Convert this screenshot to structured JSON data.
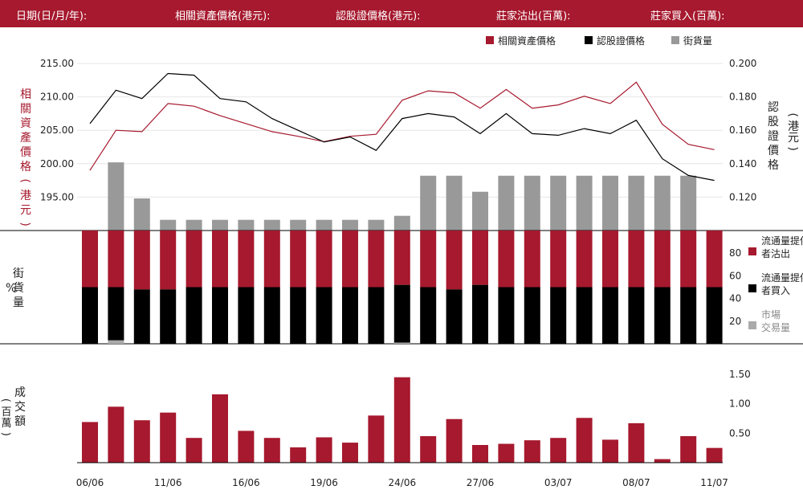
{
  "header": {
    "date_label": "日期(日/月/年):",
    "underlying_label": "相關資產價格(港元):",
    "warrant_label": "認股證價格(港元):",
    "broker_sell_label": "莊家沽出(百萬):",
    "broker_buy_label": "莊家買入(百萬):"
  },
  "colors": {
    "brand_red": "#a6192e",
    "black": "#000000",
    "gray": "#999999",
    "light_gray": "#aaaaaa"
  },
  "chart_data": [
    {
      "panel": "price",
      "type": "line",
      "legend": [
        "相關資產價格",
        "認股證價格",
        "街貨量"
      ],
      "legend_placement": "top-right",
      "y_left_label": "相關資產價格（港元）",
      "y_right_label": "認股證價格（港元）",
      "y_left_ticks": [
        "195.00",
        "200.00",
        "205.00",
        "210.00",
        "215.00"
      ],
      "y_right_ticks": [
        "0.120",
        "0.140",
        "0.160",
        "0.180",
        "0.200"
      ],
      "y_left_range": [
        190,
        215
      ],
      "y_right_range": [
        0.1,
        0.2
      ],
      "grid": true,
      "series": [
        {
          "name": "相關資產價格",
          "axis": "left",
          "color": "#a6192e",
          "values": [
            199.0,
            205.0,
            204.8,
            209.0,
            208.6,
            207.2,
            206.0,
            204.8,
            204.1,
            203.3,
            204.1,
            204.4,
            209.5,
            210.9,
            210.6,
            208.3,
            211.1,
            208.3,
            208.8,
            210.1,
            209.0,
            212.2,
            205.9,
            202.9,
            202.1
          ]
        },
        {
          "name": "認股證價格",
          "axis": "right",
          "color": "#000000",
          "values": [
            0.164,
            0.184,
            0.179,
            0.194,
            0.193,
            0.179,
            0.177,
            0.167,
            0.16,
            0.153,
            0.156,
            0.148,
            0.167,
            0.17,
            0.168,
            0.158,
            0.17,
            0.158,
            0.157,
            0.161,
            0.158,
            0.166,
            0.143,
            0.133,
            0.13
          ]
        }
      ],
      "outstanding_bars": {
        "name": "街貨量",
        "color": "#999999",
        "axis_top": 215,
        "values": [
          0,
          200.2,
          194.8,
          191.6,
          191.6,
          191.6,
          191.6,
          191.6,
          191.6,
          191.6,
          191.6,
          191.6,
          192.2,
          198.2,
          198.2,
          195.8,
          198.2,
          198.2,
          198.2,
          198.2,
          198.2,
          198.2,
          198.2,
          198.2,
          0
        ]
      }
    },
    {
      "panel": "outstanding_ratio",
      "type": "bar",
      "stacked": true,
      "y_label_left": "街貨量",
      "y_unit": "%",
      "y_ticks": [
        "20",
        "40",
        "60",
        "80"
      ],
      "ylim": [
        0,
        100
      ],
      "series": [
        {
          "name": "流通量提供者沽出",
          "color": "#a6192e",
          "values": [
            50,
            50,
            52,
            52,
            50,
            50,
            50,
            50,
            50,
            50,
            50,
            50,
            48,
            50,
            52,
            48,
            50,
            50,
            50,
            50,
            50,
            50,
            50,
            50,
            50
          ]
        },
        {
          "name": "流通量提供者買入",
          "color": "#000000",
          "values": [
            50,
            47,
            48,
            48,
            50,
            50,
            50,
            50,
            50,
            50,
            50,
            50,
            51,
            50,
            48,
            52,
            50,
            50,
            50,
            50,
            50,
            50,
            50,
            50,
            50
          ]
        },
        {
          "name": "市場交易量",
          "color": "#aaaaaa",
          "values": [
            0,
            3,
            0,
            0,
            0,
            0,
            0,
            0,
            0,
            0,
            0,
            0,
            1,
            0,
            0,
            0,
            0,
            0,
            0,
            0,
            0,
            0,
            0,
            0,
            0
          ]
        }
      ]
    },
    {
      "panel": "turnover",
      "type": "bar",
      "y_label": "成交額（百萬）",
      "y_ticks": [
        "0.50",
        "1.00",
        "1.50"
      ],
      "ylim": [
        0,
        1.5
      ],
      "color": "#a6192e",
      "values": [
        0.69,
        0.95,
        0.72,
        0.85,
        0.42,
        1.16,
        0.54,
        0.42,
        0.26,
        0.43,
        0.34,
        0.8,
        1.45,
        0.45,
        0.74,
        0.3,
        0.32,
        0.38,
        0.42,
        0.76,
        0.39,
        0.67,
        0.06,
        0.45,
        0.25
      ]
    }
  ],
  "x_axis": {
    "tick_labels": [
      "06/06",
      "11/06",
      "16/06",
      "19/06",
      "24/06",
      "27/06",
      "03/07",
      "08/07",
      "11/07"
    ],
    "tick_indices": [
      0,
      3,
      6,
      9,
      12,
      15,
      18,
      21,
      24
    ]
  }
}
